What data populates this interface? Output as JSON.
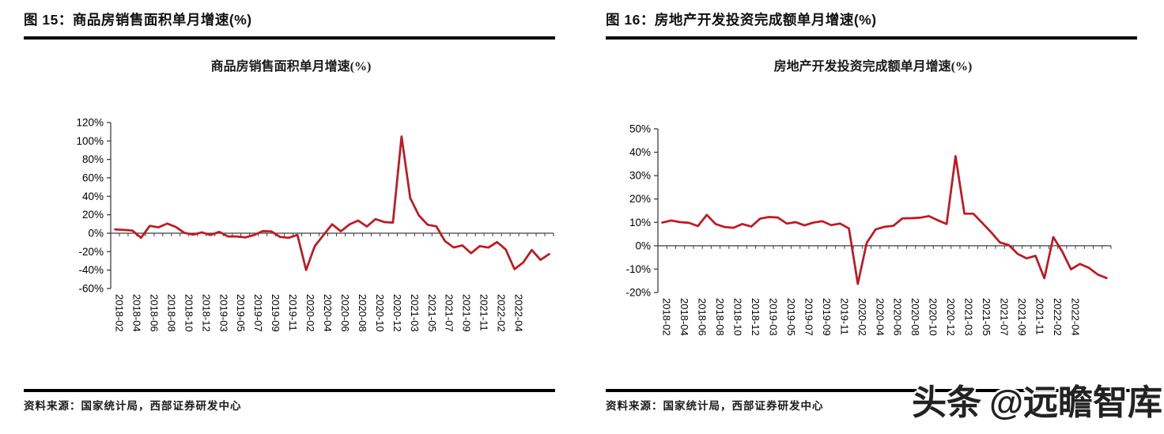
{
  "watermark": {
    "logo_text": "头条",
    "handle_text": "@远瞻智库"
  },
  "panels": [
    {
      "fig_label": "图 15：",
      "fig_title": "商品房销售面积单月增速(%)",
      "source_label": "资料来源：",
      "source_text": "国家统计局，西部证券研发中心"
    },
    {
      "fig_label": "图 16：",
      "fig_title": "房地产开发投资完成额单月增速(%)",
      "source_label": "资料来源：",
      "source_text": "国家统计局，西部证券研发中心"
    }
  ],
  "chart_data": [
    {
      "type": "line",
      "title": "商品房销售面积单月增速(%)",
      "line_color": "#C4161E",
      "grid": false,
      "legend": "none",
      "ylim": [
        -60,
        120
      ],
      "ytick_values": [
        120,
        100,
        80,
        60,
        40,
        20,
        0,
        -20,
        -40,
        -60
      ],
      "ytick_labels": [
        "120%",
        "100%",
        "80%",
        "60%",
        "40%",
        "20%",
        "0%",
        "-20%",
        "-40%",
        "-60%"
      ],
      "x_tick_labels": [
        "2018-02",
        "2018-04",
        "2018-06",
        "2018-08",
        "2018-10",
        "2018-12",
        "2019-03",
        "2019-05",
        "2019-07",
        "2019-09",
        "2019-11",
        "2020-02",
        "2020-04",
        "2020-06",
        "2020-08",
        "2020-10",
        "2020-12",
        "2021-03",
        "2021-05",
        "2021-07",
        "2021-09",
        "2021-11",
        "2022-02",
        "2022-04"
      ],
      "categories": [
        "2018-02",
        "2018-03",
        "2018-04",
        "2018-05",
        "2018-06",
        "2018-07",
        "2018-08",
        "2018-09",
        "2018-10",
        "2018-11",
        "2018-12",
        "2019-02",
        "2019-03",
        "2019-04",
        "2019-05",
        "2019-06",
        "2019-07",
        "2019-08",
        "2019-09",
        "2019-10",
        "2019-11",
        "2019-12",
        "2020-02",
        "2020-03",
        "2020-04",
        "2020-05",
        "2020-06",
        "2020-07",
        "2020-08",
        "2020-09",
        "2020-10",
        "2020-11",
        "2020-12",
        "2021-02",
        "2021-03",
        "2021-04",
        "2021-05",
        "2021-06",
        "2021-07",
        "2021-08",
        "2021-09",
        "2021-10",
        "2021-11",
        "2021-12",
        "2022-02",
        "2022-03",
        "2022-04",
        "2022-05",
        "2022-06",
        "2022-07",
        "2022-08"
      ],
      "values": [
        4.1,
        3.6,
        2.8,
        -5.0,
        8.0,
        6.3,
        10.5,
        6.8,
        0.3,
        -1.5,
        0.9,
        -2.0,
        1.5,
        -3.5,
        -3.5,
        -4.5,
        -2.0,
        2.2,
        2.0,
        -4.0,
        -5.0,
        -1.8,
        -39.9,
        -14.1,
        -2.1,
        9.7,
        2.1,
        9.5,
        13.7,
        7.3,
        15.3,
        12.1,
        11.5,
        104.9,
        38.1,
        19.2,
        9.2,
        7.5,
        -8.5,
        -15.5,
        -13.2,
        -21.7,
        -14.0,
        -15.6,
        -9.6,
        -17.7,
        -39.0,
        -31.8,
        -18.2,
        -28.9,
        -22.6
      ]
    },
    {
      "type": "line",
      "title": "房地产开发投资完成额单月增速(%)",
      "line_color": "#C4161E",
      "grid": false,
      "legend": "none",
      "ylim": [
        -20,
        50
      ],
      "ytick_values": [
        50,
        40,
        30,
        20,
        10,
        0,
        -10,
        -20
      ],
      "ytick_labels": [
        "50%",
        "40%",
        "30%",
        "20%",
        "10%",
        "0%",
        "-10%",
        "-20%"
      ],
      "x_tick_labels": [
        "2018-02",
        "2018-04",
        "2018-06",
        "2018-08",
        "2018-10",
        "2018-12",
        "2019-03",
        "2019-05",
        "2019-07",
        "2019-09",
        "2019-11",
        "2020-02",
        "2020-04",
        "2020-06",
        "2020-08",
        "2020-10",
        "2020-12",
        "2021-03",
        "2021-05",
        "2021-07",
        "2021-09",
        "2021-11",
        "2022-02",
        "2022-04"
      ],
      "categories": [
        "2018-02",
        "2018-03",
        "2018-04",
        "2018-05",
        "2018-06",
        "2018-07",
        "2018-08",
        "2018-09",
        "2018-10",
        "2018-11",
        "2018-12",
        "2019-02",
        "2019-03",
        "2019-04",
        "2019-05",
        "2019-06",
        "2019-07",
        "2019-08",
        "2019-09",
        "2019-10",
        "2019-11",
        "2019-12",
        "2020-02",
        "2020-03",
        "2020-04",
        "2020-05",
        "2020-06",
        "2020-07",
        "2020-08",
        "2020-09",
        "2020-10",
        "2020-11",
        "2020-12",
        "2021-02",
        "2021-03",
        "2021-04",
        "2021-05",
        "2021-06",
        "2021-07",
        "2021-08",
        "2021-09",
        "2021-10",
        "2021-11",
        "2021-12",
        "2022-02",
        "2022-03",
        "2022-04",
        "2022-05",
        "2022-06",
        "2022-07",
        "2022-08"
      ],
      "values": [
        9.9,
        10.8,
        10.1,
        9.8,
        8.4,
        13.2,
        9.3,
        8.0,
        7.7,
        9.3,
        8.2,
        11.6,
        12.3,
        12.1,
        9.5,
        10.1,
        8.7,
        9.9,
        10.5,
        8.8,
        9.5,
        7.4,
        -16.3,
        1.2,
        7.0,
        8.1,
        8.5,
        11.7,
        11.8,
        12.0,
        12.7,
        10.9,
        9.3,
        38.3,
        13.7,
        13.7,
        9.8,
        5.8,
        1.4,
        0.3,
        -3.5,
        -5.4,
        -4.3,
        -13.9,
        3.7,
        -2.4,
        -10.1,
        -7.8,
        -9.4,
        -12.3,
        -13.8
      ]
    }
  ]
}
